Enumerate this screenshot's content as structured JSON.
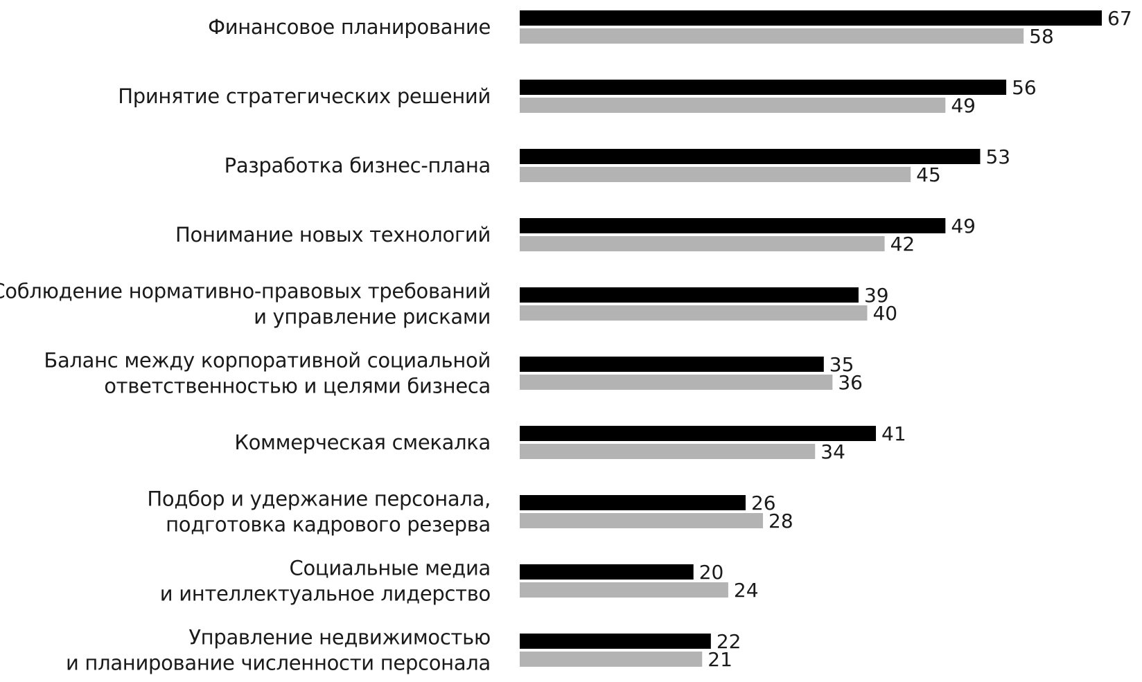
{
  "chart_data": {
    "type": "bar",
    "orientation": "horizontal",
    "categories": [
      [
        "Финансовое планирование"
      ],
      [
        "Принятие стратегических решений"
      ],
      [
        "Разработка бизнес-плана"
      ],
      [
        "Понимание новых технологий"
      ],
      [
        "Соблюдение нормативно-правовых требований",
        "и управление рисками"
      ],
      [
        "Баланс между корпоративной социальной",
        "ответственностью и целями бизнеса"
      ],
      [
        "Коммерческая смекалка"
      ],
      [
        "Подбор и удержание персонала,",
        "подготовка кадрового резерва"
      ],
      [
        "Социальные медиа",
        "и интеллектуальное лидерство"
      ],
      [
        "Управление недвижимостью",
        "и планирование численности персонала"
      ]
    ],
    "series": [
      {
        "color": "#000000",
        "values": [
          67,
          56,
          53,
          49,
          39,
          35,
          41,
          26,
          20,
          22
        ]
      },
      {
        "color": "#b3b3b3",
        "values": [
          58,
          49,
          45,
          42,
          40,
          36,
          34,
          28,
          24,
          21
        ]
      }
    ],
    "xlim": [
      0,
      67
    ],
    "grid": false,
    "legend": "none"
  }
}
